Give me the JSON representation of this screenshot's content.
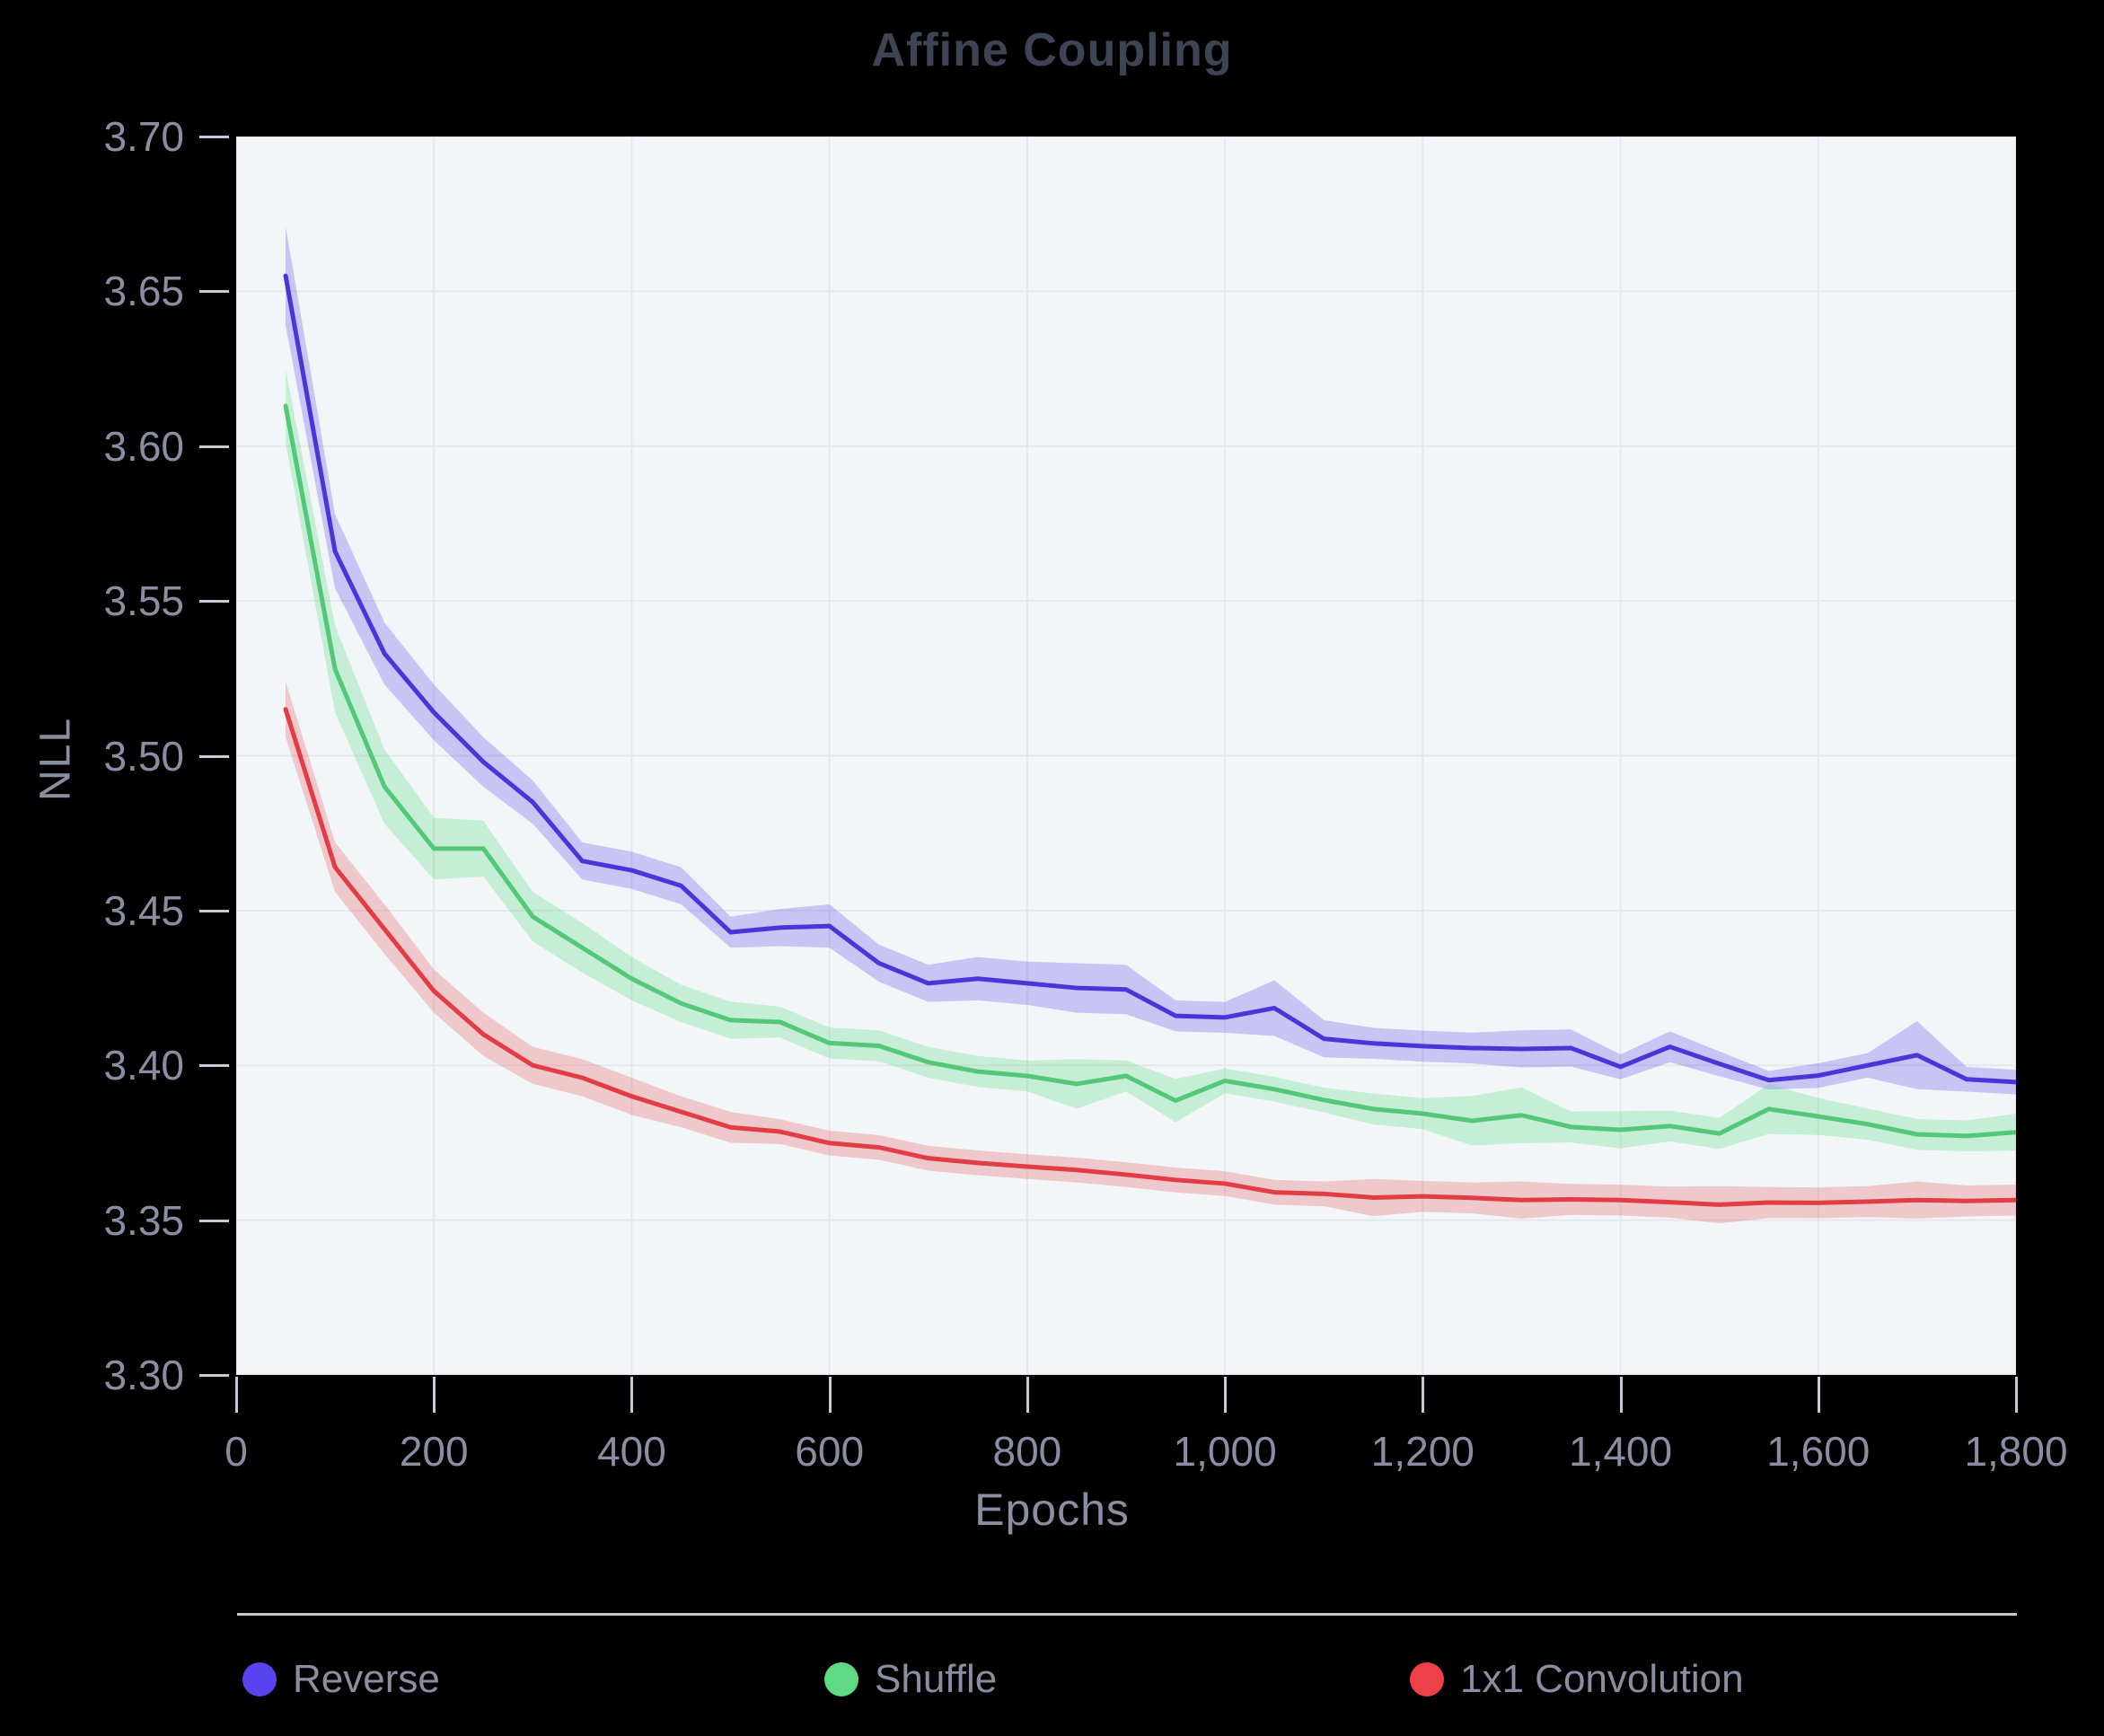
{
  "title": "Affine Coupling",
  "colors": {
    "page_bg": "#000000",
    "plot_bg": "#f3f6f9",
    "grid": "#e6e7ec",
    "tick_mark": "#c9cad6",
    "separator": "#c6c7d1",
    "tick_text": "#8b8ea0",
    "axis_title_text": "#8b8ea0",
    "legend_text": "#8b8ea0",
    "title_text": "#3e4454"
  },
  "axes": {
    "x": {
      "label": "Epochs",
      "min": 0,
      "max": 1800,
      "ticks": [
        0,
        200,
        400,
        600,
        800,
        1000,
        1200,
        1400,
        1600,
        1800
      ],
      "tick_labels": [
        "0",
        "200",
        "400",
        "600",
        "800",
        "1,000",
        "1,200",
        "1,400",
        "1,600",
        "1,800"
      ]
    },
    "y": {
      "label": "NLL",
      "min": 3.3,
      "max": 3.7,
      "ticks": [
        3.3,
        3.35,
        3.4,
        3.45,
        3.5,
        3.55,
        3.6,
        3.65,
        3.7
      ],
      "tick_labels": [
        "3.30",
        "3.35",
        "3.40",
        "3.45",
        "3.50",
        "3.55",
        "3.60",
        "3.65",
        "3.70"
      ]
    }
  },
  "legend": {
    "items": [
      {
        "label": "Reverse",
        "dot_color": "#5843ee"
      },
      {
        "label": "Shuffle",
        "dot_color": "#5fd983"
      },
      {
        "label": "1x1 Convolution",
        "dot_color": "#ef4049"
      }
    ]
  },
  "chart_data": {
    "type": "line",
    "title": "Affine Coupling",
    "xlabel": "Epochs",
    "ylabel": "NLL",
    "xlim": [
      0,
      1800
    ],
    "ylim": [
      3.3,
      3.7
    ],
    "grid": true,
    "legend_position": "bottom",
    "uncertainty_bands": true,
    "x": [
      50,
      100,
      150,
      200,
      250,
      300,
      350,
      400,
      450,
      500,
      550,
      600,
      650,
      700,
      750,
      800,
      850,
      900,
      950,
      1000,
      1050,
      1100,
      1150,
      1200,
      1250,
      1300,
      1350,
      1400,
      1450,
      1500,
      1550,
      1600,
      1650,
      1700,
      1750,
      1800
    ],
    "series": [
      {
        "name": "Reverse",
        "line_color": "#4b35d9",
        "band_color": "rgba(91,70,229,0.28)",
        "values": [
          3.655,
          3.566,
          3.533,
          3.514,
          3.498,
          3.485,
          3.466,
          3.463,
          3.458,
          3.443,
          3.4445,
          3.445,
          3.433,
          3.4265,
          3.428,
          3.4265,
          3.425,
          3.4245,
          3.416,
          3.4155,
          3.4185,
          3.4086,
          3.4071,
          3.4062,
          3.4056,
          3.4053,
          3.4056,
          3.3995,
          3.406,
          3.4005,
          3.3952,
          3.3967,
          3.4,
          3.4033,
          3.3955,
          3.3946
        ],
        "band_halfwidth": [
          0.016,
          0.012,
          0.01,
          0.009,
          0.008,
          0.007,
          0.006,
          0.006,
          0.006,
          0.005,
          0.006,
          0.007,
          0.006,
          0.006,
          0.007,
          0.007,
          0.008,
          0.008,
          0.005,
          0.005,
          0.009,
          0.006,
          0.005,
          0.005,
          0.005,
          0.006,
          0.006,
          0.004,
          0.005,
          0.004,
          0.003,
          0.004,
          0.004,
          0.011,
          0.004,
          0.004
        ]
      },
      {
        "name": "Shuffle",
        "line_color": "#53c878",
        "band_color": "rgba(95,216,130,0.30)",
        "values": [
          3.613,
          3.528,
          3.49,
          3.47,
          3.47,
          3.448,
          3.438,
          3.428,
          3.42,
          3.4146,
          3.414,
          3.4072,
          3.4063,
          3.401,
          3.398,
          3.3966,
          3.394,
          3.3966,
          3.3886,
          3.395,
          3.3923,
          3.3888,
          3.3859,
          3.3844,
          3.3821,
          3.3839,
          3.3801,
          3.3792,
          3.3804,
          3.378,
          3.3859,
          3.3835,
          3.381,
          3.3777,
          3.3772,
          3.3784
        ],
        "band_halfwidth": [
          0.012,
          0.014,
          0.012,
          0.01,
          0.009,
          0.008,
          0.008,
          0.007,
          0.006,
          0.006,
          0.005,
          0.005,
          0.005,
          0.005,
          0.005,
          0.005,
          0.008,
          0.005,
          0.007,
          0.004,
          0.004,
          0.004,
          0.005,
          0.005,
          0.008,
          0.009,
          0.005,
          0.006,
          0.005,
          0.005,
          0.008,
          0.006,
          0.005,
          0.005,
          0.005,
          0.006
        ]
      },
      {
        "name": "1x1 Convolution",
        "line_color": "#e23c46",
        "band_color": "rgba(228,62,72,0.25)",
        "values": [
          3.515,
          3.464,
          3.444,
          3.424,
          3.41,
          3.4,
          3.396,
          3.39,
          3.385,
          3.38,
          3.3786,
          3.3749,
          3.3735,
          3.37,
          3.3685,
          3.3673,
          3.3662,
          3.3647,
          3.363,
          3.3618,
          3.359,
          3.3585,
          3.3573,
          3.3577,
          3.3572,
          3.3565,
          3.3567,
          3.3565,
          3.3558,
          3.355,
          3.3557,
          3.3556,
          3.356,
          3.3565,
          3.3562,
          3.3565
        ],
        "band_halfwidth": [
          0.009,
          0.008,
          0.008,
          0.007,
          0.007,
          0.006,
          0.006,
          0.006,
          0.005,
          0.005,
          0.004,
          0.004,
          0.004,
          0.004,
          0.004,
          0.004,
          0.004,
          0.004,
          0.004,
          0.004,
          0.004,
          0.004,
          0.006,
          0.005,
          0.005,
          0.006,
          0.005,
          0.005,
          0.005,
          0.006,
          0.005,
          0.005,
          0.005,
          0.006,
          0.005,
          0.005
        ]
      }
    ]
  }
}
